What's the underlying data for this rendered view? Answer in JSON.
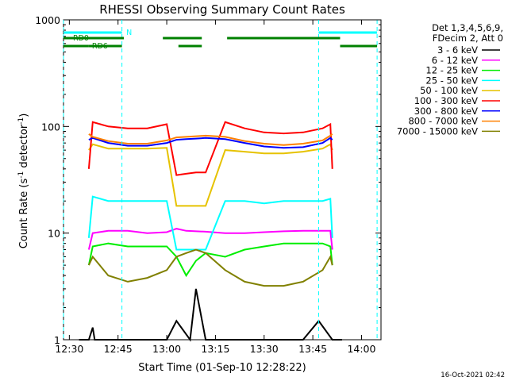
{
  "chart_data": {
    "type": "line",
    "title": "RHESSI Observing Summary Count Rates",
    "xlabel": "Start Time (01-Sep-10 12:28:22)",
    "ylabel": "Count Rate (s",
    "ylabel_sup": "-1",
    "ylabel_tail": " detector",
    "ylabel_end": ")",
    "yscale": "log",
    "xlim": [
      12.47,
      14.1
    ],
    "ylim": [
      1,
      1000
    ],
    "x_units": "decimal hours UT",
    "x_ticks": [
      {
        "value": 12.5,
        "label": "12:30"
      },
      {
        "value": 12.75,
        "label": "12:45"
      },
      {
        "value": 13.0,
        "label": "13:00"
      },
      {
        "value": 13.25,
        "label": "13:15"
      },
      {
        "value": 13.5,
        "label": "13:30"
      },
      {
        "value": 13.75,
        "label": "13:45"
      },
      {
        "value": 14.0,
        "label": "14:00"
      }
    ],
    "y_ticks": [
      {
        "value": 1,
        "label": "1"
      },
      {
        "value": 10,
        "label": "10"
      },
      {
        "value": 100,
        "label": "100"
      },
      {
        "value": 1000,
        "label": "1000"
      }
    ],
    "legend_header": [
      "Det 1,3,4,5,6,9,",
      "FDecim 2, Att 0"
    ],
    "legend_placement": "right",
    "footer": "16-Oct-2021 02:42",
    "grid": false,
    "series": [
      {
        "name": "3 - 6 keV",
        "color": "#000000",
        "values": [
          [
            12.55,
            1
          ],
          [
            12.6,
            1
          ],
          [
            12.62,
            1.3
          ],
          [
            12.63,
            1
          ],
          [
            13.0,
            1
          ],
          [
            13.05,
            1.5
          ],
          [
            13.12,
            1
          ],
          [
            13.15,
            3
          ],
          [
            13.2,
            1
          ],
          [
            13.7,
            1
          ],
          [
            13.78,
            1.5
          ],
          [
            13.85,
            1
          ],
          [
            13.9,
            1
          ]
        ]
      },
      {
        "name": "6 - 12 keV",
        "color": "#ff00ff",
        "values": [
          [
            12.6,
            7
          ],
          [
            12.62,
            10
          ],
          [
            12.7,
            10.5
          ],
          [
            12.8,
            10.5
          ],
          [
            12.9,
            10
          ],
          [
            13.0,
            10.2
          ],
          [
            13.05,
            11
          ],
          [
            13.1,
            10.5
          ],
          [
            13.2,
            10.3
          ],
          [
            13.3,
            10
          ],
          [
            13.4,
            10
          ],
          [
            13.5,
            10.2
          ],
          [
            13.6,
            10.4
          ],
          [
            13.7,
            10.5
          ],
          [
            13.8,
            10.5
          ],
          [
            13.84,
            10.5
          ],
          [
            13.85,
            7
          ]
        ]
      },
      {
        "name": "12 - 25 keV",
        "color": "#00ee00",
        "values": [
          [
            12.6,
            5
          ],
          [
            12.62,
            7.5
          ],
          [
            12.7,
            8
          ],
          [
            12.8,
            7.5
          ],
          [
            12.9,
            7.5
          ],
          [
            13.0,
            7.5
          ],
          [
            13.05,
            6
          ],
          [
            13.1,
            4
          ],
          [
            13.15,
            5.5
          ],
          [
            13.2,
            6.5
          ],
          [
            13.3,
            6
          ],
          [
            13.4,
            7
          ],
          [
            13.5,
            7.5
          ],
          [
            13.6,
            8
          ],
          [
            13.7,
            8
          ],
          [
            13.8,
            8
          ],
          [
            13.84,
            7.5
          ],
          [
            13.85,
            5
          ]
        ]
      },
      {
        "name": "25 - 50 keV",
        "color": "#00ffff",
        "values": [
          [
            12.6,
            9
          ],
          [
            12.62,
            22
          ],
          [
            12.7,
            20
          ],
          [
            12.8,
            20
          ],
          [
            12.9,
            20
          ],
          [
            13.0,
            20
          ],
          [
            13.05,
            7
          ],
          [
            13.1,
            7
          ],
          [
            13.15,
            7
          ],
          [
            13.2,
            7
          ],
          [
            13.3,
            20
          ],
          [
            13.4,
            20
          ],
          [
            13.5,
            19
          ],
          [
            13.6,
            20
          ],
          [
            13.7,
            20
          ],
          [
            13.8,
            20
          ],
          [
            13.84,
            21
          ],
          [
            13.85,
            9
          ]
        ]
      },
      {
        "name": "50 - 100 keV",
        "color": "#e6c200",
        "values": [
          [
            12.6,
            60
          ],
          [
            12.62,
            68
          ],
          [
            12.7,
            62
          ],
          [
            12.8,
            62
          ],
          [
            12.9,
            62
          ],
          [
            13.0,
            63
          ],
          [
            13.05,
            18
          ],
          [
            13.1,
            18
          ],
          [
            13.15,
            18
          ],
          [
            13.2,
            18
          ],
          [
            13.3,
            60
          ],
          [
            13.4,
            58
          ],
          [
            13.5,
            56
          ],
          [
            13.6,
            56
          ],
          [
            13.7,
            58
          ],
          [
            13.8,
            62
          ],
          [
            13.84,
            68
          ],
          [
            13.85,
            60
          ]
        ]
      },
      {
        "name": "100 - 300 keV",
        "color": "#ff0000",
        "values": [
          [
            12.6,
            40
          ],
          [
            12.62,
            110
          ],
          [
            12.7,
            100
          ],
          [
            12.8,
            96
          ],
          [
            12.9,
            96
          ],
          [
            13.0,
            105
          ],
          [
            13.05,
            35
          ],
          [
            13.1,
            36
          ],
          [
            13.15,
            37
          ],
          [
            13.2,
            37
          ],
          [
            13.3,
            110
          ],
          [
            13.4,
            96
          ],
          [
            13.5,
            88
          ],
          [
            13.6,
            86
          ],
          [
            13.7,
            88
          ],
          [
            13.8,
            96
          ],
          [
            13.84,
            105
          ],
          [
            13.85,
            40
          ]
        ]
      },
      {
        "name": "300 - 800 keV",
        "color": "#0000ff",
        "values": [
          [
            12.6,
            75
          ],
          [
            12.62,
            78
          ],
          [
            12.7,
            70
          ],
          [
            12.8,
            66
          ],
          [
            12.9,
            66
          ],
          [
            13.0,
            70
          ],
          [
            13.05,
            75
          ],
          [
            13.1,
            76
          ],
          [
            13.15,
            77
          ],
          [
            13.2,
            78
          ],
          [
            13.3,
            76
          ],
          [
            13.4,
            70
          ],
          [
            13.5,
            65
          ],
          [
            13.6,
            63
          ],
          [
            13.7,
            64
          ],
          [
            13.8,
            70
          ],
          [
            13.84,
            78
          ],
          [
            13.85,
            75
          ]
        ]
      },
      {
        "name": "800 - 7000 keV",
        "color": "#ff8000",
        "values": [
          [
            12.6,
            85
          ],
          [
            12.62,
            80
          ],
          [
            12.7,
            73
          ],
          [
            12.8,
            69
          ],
          [
            12.9,
            69
          ],
          [
            13.0,
            74
          ],
          [
            13.05,
            79
          ],
          [
            13.1,
            80
          ],
          [
            13.15,
            81
          ],
          [
            13.2,
            82
          ],
          [
            13.3,
            80
          ],
          [
            13.4,
            73
          ],
          [
            13.5,
            69
          ],
          [
            13.6,
            67
          ],
          [
            13.7,
            69
          ],
          [
            13.8,
            74
          ],
          [
            13.84,
            82
          ],
          [
            13.85,
            85
          ]
        ]
      },
      {
        "name": "7000 - 15000 keV",
        "color": "#808000",
        "values": [
          [
            12.6,
            5
          ],
          [
            12.62,
            6
          ],
          [
            12.7,
            4
          ],
          [
            12.8,
            3.5
          ],
          [
            12.9,
            3.8
          ],
          [
            13.0,
            4.5
          ],
          [
            13.05,
            6
          ],
          [
            13.1,
            6.5
          ],
          [
            13.15,
            7
          ],
          [
            13.2,
            6.5
          ],
          [
            13.3,
            4.5
          ],
          [
            13.4,
            3.5
          ],
          [
            13.5,
            3.2
          ],
          [
            13.6,
            3.2
          ],
          [
            13.7,
            3.5
          ],
          [
            13.8,
            4.5
          ],
          [
            13.84,
            6
          ],
          [
            13.85,
            5
          ]
        ]
      }
    ],
    "flags": {
      "night_label": "N",
      "saa_label": "RD0",
      "decim_label": "RD6",
      "night_color": "#00ffff",
      "flag_color": "#008000",
      "night_bars": [
        [
          12.47,
          12.77
        ],
        [
          13.78,
          14.08
        ]
      ],
      "upper_flag_bars": [
        [
          12.47,
          12.78
        ],
        [
          12.98,
          13.18
        ],
        [
          13.31,
          13.89
        ]
      ],
      "lower_flag_bars": [
        [
          12.47,
          12.6
        ],
        [
          12.6,
          12.77
        ],
        [
          13.06,
          13.18
        ],
        [
          13.89,
          14.08
        ]
      ],
      "night_markers": [
        12.47,
        12.77,
        13.78,
        14.08
      ]
    }
  }
}
